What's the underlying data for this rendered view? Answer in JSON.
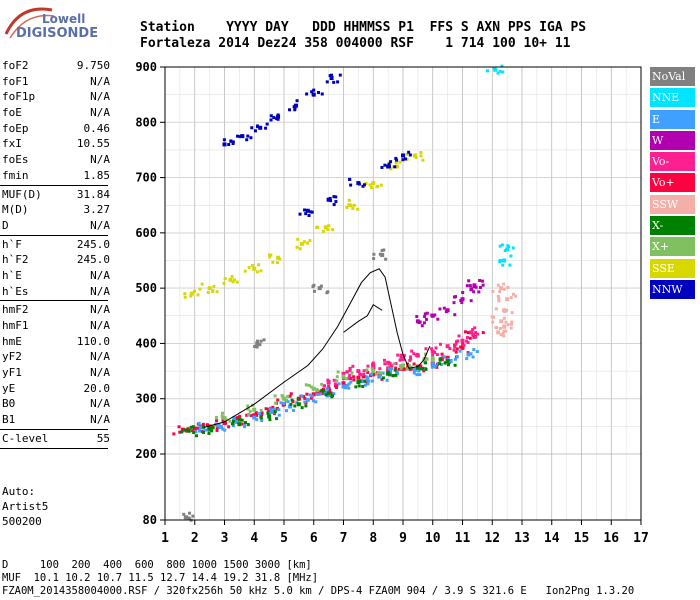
{
  "logo": {
    "line1": "Lowell",
    "line2": "DIGISONDE"
  },
  "header": {
    "labels": "Station    YYYY DAY   DDD HHMMSS P1  FFS S AXN PPS IGA PS",
    "values": "Fortaleza 2014 Dez24 358 004000 RSF    1 714 100 10+ 11"
  },
  "params": [
    {
      "name": "foF2",
      "value": "9.750"
    },
    {
      "name": "foF1",
      "value": "N/A"
    },
    {
      "name": "foF1p",
      "value": "N/A"
    },
    {
      "name": "foE",
      "value": "N/A"
    },
    {
      "name": "foEp",
      "value": "0.46"
    },
    {
      "name": "fxI",
      "value": "10.55"
    },
    {
      "name": "foEs",
      "value": "N/A"
    },
    {
      "name": "fmin",
      "value": "1.85"
    },
    {
      "sep": true
    },
    {
      "name": "MUF(D)",
      "value": "31.84"
    },
    {
      "name": "M(D)",
      "value": "3.27"
    },
    {
      "name": "D",
      "value": "N/A"
    },
    {
      "sep": true
    },
    {
      "name": "h`F",
      "value": "245.0"
    },
    {
      "name": "h`F2",
      "value": "245.0"
    },
    {
      "name": "h`E",
      "value": "N/A"
    },
    {
      "name": "h`Es",
      "value": "N/A"
    },
    {
      "sep": true
    },
    {
      "name": "hmF2",
      "value": "N/A"
    },
    {
      "name": "hmF1",
      "value": "N/A"
    },
    {
      "name": "hmE",
      "value": "110.0"
    },
    {
      "name": "yF2",
      "value": "N/A"
    },
    {
      "name": "yF1",
      "value": "N/A"
    },
    {
      "name": "yE",
      "value": "20.0"
    },
    {
      "name": "B0",
      "value": "N/A"
    },
    {
      "name": "B1",
      "value": "N/A"
    },
    {
      "sep": true
    },
    {
      "name": "C-level",
      "value": "55"
    },
    {
      "sep": true
    }
  ],
  "auto": {
    "line1": "Auto:",
    "line2": "Artist5",
    "line3": "500200"
  },
  "legend": [
    {
      "label": "NoVal",
      "color": "#808080"
    },
    {
      "label": "NNE",
      "color": "#00e5ff"
    },
    {
      "label": "E",
      "color": "#40a0ff"
    },
    {
      "label": "W",
      "color": "#b000b0"
    },
    {
      "label": "Vo-",
      "color": "#ff2090"
    },
    {
      "label": "Vo+",
      "color": "#ff0040"
    },
    {
      "label": "SSW",
      "color": "#f4b0a8"
    },
    {
      "label": "X-",
      "color": "#008000"
    },
    {
      "label": "X+",
      "color": "#80c060"
    },
    {
      "label": "SSE",
      "color": "#d8d800"
    },
    {
      "label": "NNW",
      "color": "#0000c0"
    }
  ],
  "footer": {
    "line1": "D     100  200  400  600  800 1000 1500 3000 [km]",
    "line2": "MUF  10.1 10.2 10.7 11.5 12.7 14.4 19.2 31.8 [MHz]",
    "line3": "FZA0M_2014358004000.RSF / 320fx256h 50 kHz 5.0 km / DPS-4 FZA0M 904 / 3.9 S 321.6 E   Ion2Png 1.3.20"
  },
  "chart_data": {
    "type": "scatter",
    "title": "",
    "xlabel": "",
    "ylabel": "",
    "xlim": [
      1,
      17
    ],
    "ylim": [
      80,
      900
    ],
    "x_ticks": [
      1,
      2,
      3,
      4,
      5,
      6,
      7,
      8,
      9,
      10,
      11,
      12,
      13,
      14,
      15,
      16,
      17
    ],
    "y_ticks": [
      80,
      200,
      300,
      400,
      500,
      600,
      700,
      800,
      900
    ],
    "grid": true,
    "series": [
      {
        "name": "Vo+",
        "color": "#ff0040",
        "points": [
          [
            1.6,
            244
          ],
          [
            2.0,
            246
          ],
          [
            2.5,
            250
          ],
          [
            3.0,
            256
          ],
          [
            3.5,
            262
          ],
          [
            4.0,
            270
          ],
          [
            4.5,
            280
          ],
          [
            5.0,
            290
          ],
          [
            5.5,
            300
          ],
          [
            6.0,
            308
          ],
          [
            6.5,
            318
          ],
          [
            7.0,
            328
          ],
          [
            7.5,
            338
          ],
          [
            8.0,
            344
          ],
          [
            8.5,
            350
          ],
          [
            9.0,
            354
          ],
          [
            9.5,
            358
          ],
          [
            10.0,
            364
          ],
          [
            10.5,
            374
          ],
          [
            11.0,
            392
          ],
          [
            11.4,
            412
          ]
        ]
      },
      {
        "name": "E",
        "color": "#40a0ff",
        "points": [
          [
            2.2,
            248
          ],
          [
            2.8,
            252
          ],
          [
            3.4,
            258
          ],
          [
            4.0,
            266
          ],
          [
            4.6,
            276
          ],
          [
            5.2,
            286
          ],
          [
            5.8,
            298
          ],
          [
            6.4,
            310
          ],
          [
            7.0,
            322
          ],
          [
            7.6,
            332
          ],
          [
            8.2,
            340
          ],
          [
            8.8,
            346
          ],
          [
            9.4,
            352
          ],
          [
            10.0,
            358
          ],
          [
            10.6,
            368
          ],
          [
            11.2,
            380
          ]
        ]
      },
      {
        "name": "Vo-",
        "color": "#ff2090",
        "points": [
          [
            6.5,
            330
          ],
          [
            7.0,
            345
          ],
          [
            7.5,
            350
          ],
          [
            8.0,
            360
          ],
          [
            8.5,
            365
          ],
          [
            9.0,
            372
          ],
          [
            9.5,
            378
          ],
          [
            10.0,
            385
          ],
          [
            10.5,
            395
          ],
          [
            11.0,
            405
          ],
          [
            11.3,
            420
          ]
        ]
      },
      {
        "name": "W",
        "color": "#b000b0",
        "points": [
          [
            9.5,
            440
          ],
          [
            10.0,
            450
          ],
          [
            10.5,
            460
          ],
          [
            11.0,
            480
          ],
          [
            11.3,
            498
          ],
          [
            11.4,
            505
          ]
        ]
      },
      {
        "name": "X-",
        "color": "#008000",
        "points": [
          [
            1.8,
            242
          ],
          [
            2.5,
            246
          ],
          [
            3.5,
            254
          ],
          [
            4.5,
            268
          ],
          [
            5.5,
            290
          ],
          [
            6.5,
            310
          ],
          [
            7.5,
            330
          ],
          [
            8.5,
            346
          ],
          [
            9.5,
            356
          ],
          [
            10.5,
            368
          ]
        ]
      },
      {
        "name": "X+",
        "color": "#80c060",
        "points": [
          [
            3.0,
            265
          ],
          [
            4.0,
            280
          ],
          [
            5.0,
            300
          ],
          [
            6.0,
            318
          ],
          [
            7.0,
            340
          ],
          [
            8.0,
            350
          ],
          [
            9.0,
            360
          ],
          [
            10.0,
            372
          ]
        ]
      },
      {
        "name": "SSW",
        "color": "#f4b0a8",
        "points": [
          [
            12.2,
            420
          ],
          [
            12.3,
            440
          ],
          [
            12.4,
            460
          ],
          [
            12.5,
            480
          ],
          [
            12.3,
            500
          ],
          [
            12.4,
            430
          ]
        ]
      },
      {
        "name": "NNE",
        "color": "#00e5ff",
        "points": [
          [
            12.4,
            550
          ],
          [
            12.5,
            570
          ],
          [
            12.1,
            895
          ]
        ]
      },
      {
        "name": "SSE",
        "color": "#d8d800",
        "points": [
          [
            1.9,
            490
          ],
          [
            2.5,
            500
          ],
          [
            3.2,
            515
          ],
          [
            4.0,
            535
          ],
          [
            4.8,
            555
          ],
          [
            5.6,
            580
          ],
          [
            6.4,
            610
          ],
          [
            7.2,
            650
          ],
          [
            8.0,
            690
          ],
          [
            8.8,
            720
          ],
          [
            9.4,
            740
          ]
        ]
      },
      {
        "name": "NNW",
        "color": "#0000c0",
        "points": [
          [
            3.0,
            760
          ],
          [
            3.6,
            775
          ],
          [
            4.2,
            790
          ],
          [
            4.8,
            810
          ],
          [
            5.4,
            830
          ],
          [
            6.0,
            850
          ],
          [
            6.6,
            880
          ],
          [
            5.8,
            640
          ],
          [
            6.5,
            660
          ],
          [
            7.5,
            690
          ],
          [
            8.5,
            720
          ],
          [
            9.0,
            740
          ]
        ]
      },
      {
        "name": "NoVal",
        "color": "#808080",
        "points": [
          [
            1.7,
            85
          ],
          [
            4.1,
            400
          ],
          [
            6.2,
            500
          ],
          [
            8.3,
            560
          ]
        ]
      }
    ],
    "profile_line": [
      [
        2.3,
        248
      ],
      [
        3.0,
        258
      ],
      [
        4.0,
        290
      ],
      [
        5.0,
        330
      ],
      [
        5.8,
        360
      ],
      [
        6.3,
        390
      ],
      [
        6.8,
        430
      ],
      [
        7.2,
        470
      ],
      [
        7.6,
        510
      ],
      [
        7.9,
        528
      ],
      [
        8.2,
        535
      ],
      [
        8.4,
        520
      ],
      [
        8.6,
        470
      ],
      [
        8.8,
        420
      ],
      [
        9.0,
        380
      ],
      [
        9.2,
        355
      ],
      [
        9.5,
        358
      ],
      [
        9.7,
        370
      ],
      [
        9.9,
        395
      ]
    ],
    "second_hop_line": [
      [
        7.0,
        420
      ],
      [
        7.5,
        440
      ],
      [
        7.8,
        450
      ],
      [
        8.0,
        470
      ],
      [
        8.3,
        460
      ]
    ]
  }
}
